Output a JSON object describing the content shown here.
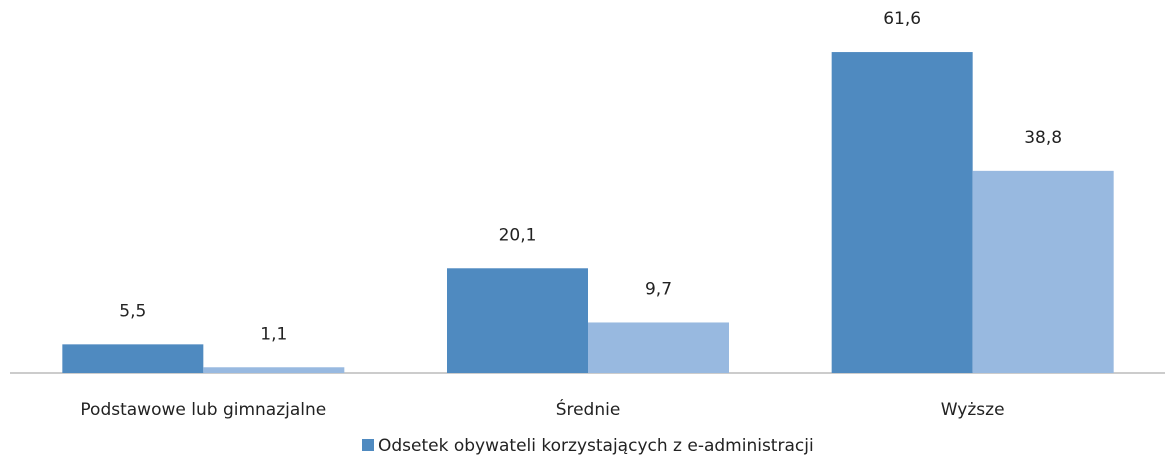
{
  "chart_data": {
    "type": "bar",
    "categories": [
      "Podstawowe lub gimnazjalne",
      "Średnie",
      "Wyższe"
    ],
    "series": [
      {
        "name": "Odsetek obywateli korzystających z e-administracji",
        "color": "#4f8ac0",
        "values": [
          5.5,
          20.1,
          61.6
        ],
        "value_labels": [
          "5,5",
          "20,1",
          "61,6"
        ]
      },
      {
        "color": "#98b9e0",
        "values": [
          1.1,
          9.7,
          38.8
        ],
        "value_labels": [
          "1,1",
          "9,7",
          "38,8"
        ]
      }
    ],
    "legend": "bottom"
  }
}
